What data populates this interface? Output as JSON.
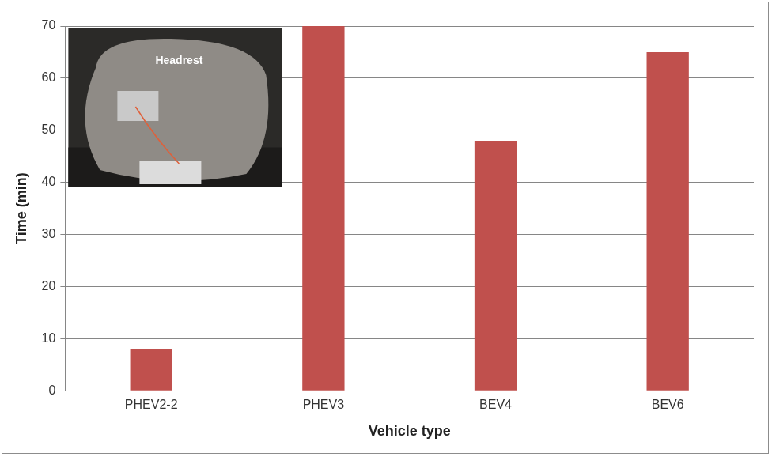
{
  "chart_data": {
    "type": "bar",
    "categories": [
      "PHEV2-2",
      "PHEV3",
      "BEV4",
      "BEV6"
    ],
    "values": [
      8,
      70,
      48,
      65
    ],
    "color": "#c0504d",
    "ylim": [
      0,
      70
    ],
    "yticks": [
      0,
      10,
      20,
      30,
      40,
      50,
      60,
      70
    ],
    "grid": true,
    "x_label": "Vehicle type",
    "y_label": "Time (min)",
    "annotation": "Headrest"
  }
}
